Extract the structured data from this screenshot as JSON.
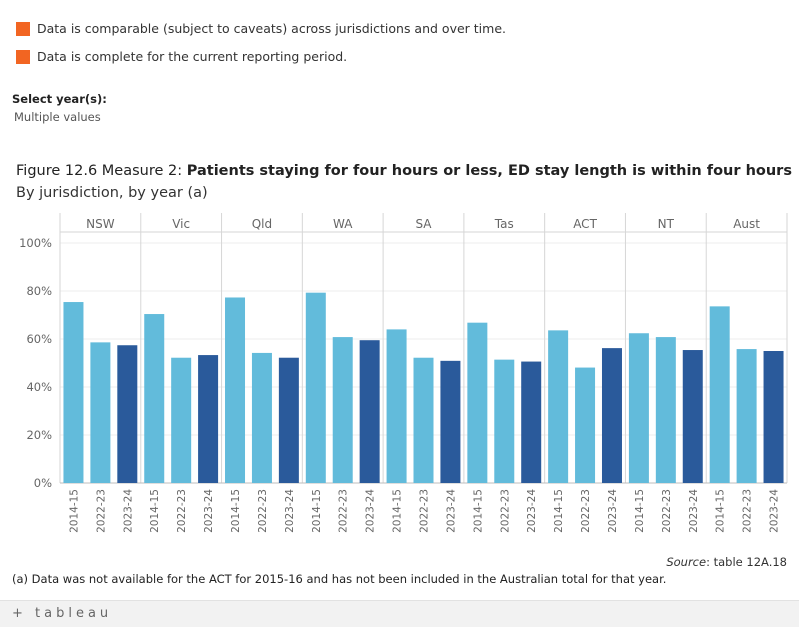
{
  "legend": {
    "items": [
      "Data is comparable (subject to caveats) across jurisdictions and over time.",
      "Data is complete for the current reporting period."
    ],
    "color": "#f26522"
  },
  "filter": {
    "label": "Select year(s):",
    "value": "Multiple values"
  },
  "title": {
    "prefix": "Figure 12.6 Measure 2: ",
    "main": "Patients staying for four hours or less, ED stay length is within four hours",
    "subtitle": "By jurisdiction, by year (a)"
  },
  "chart_data": {
    "type": "bar",
    "panels": [
      "NSW",
      "Vic",
      "Qld",
      "WA",
      "SA",
      "Tas",
      "ACT",
      "NT",
      "Aust"
    ],
    "categories": [
      "2014-15",
      "2022-23",
      "2023-24"
    ],
    "values": [
      [
        75.4,
        58.6,
        57.4
      ],
      [
        70.4,
        52.2,
        53.3
      ],
      [
        77.3,
        54.2,
        52.2
      ],
      [
        79.3,
        60.8,
        59.5
      ],
      [
        64.0,
        52.2,
        50.9
      ],
      [
        66.8,
        51.4,
        50.6
      ],
      [
        63.6,
        48.1,
        56.2
      ],
      [
        62.4,
        60.8,
        55.4
      ],
      [
        73.6,
        55.8,
        55.0
      ]
    ],
    "colors": {
      "2014-15": "#62bbdb",
      "2022-23": "#62bbdb",
      "2023-24": "#2a5a9b"
    },
    "ylim": [
      0,
      100
    ],
    "yticks": [
      "0%",
      "20%",
      "40%",
      "60%",
      "80%",
      "100%"
    ]
  },
  "source": {
    "label": "Source",
    "text": ": table 12A.18"
  },
  "footnote": "(a) Data was not available for the ACT for 2015-16 and has not been included in the Australian total for that year.",
  "footer": {
    "logo": "+ tableau"
  }
}
